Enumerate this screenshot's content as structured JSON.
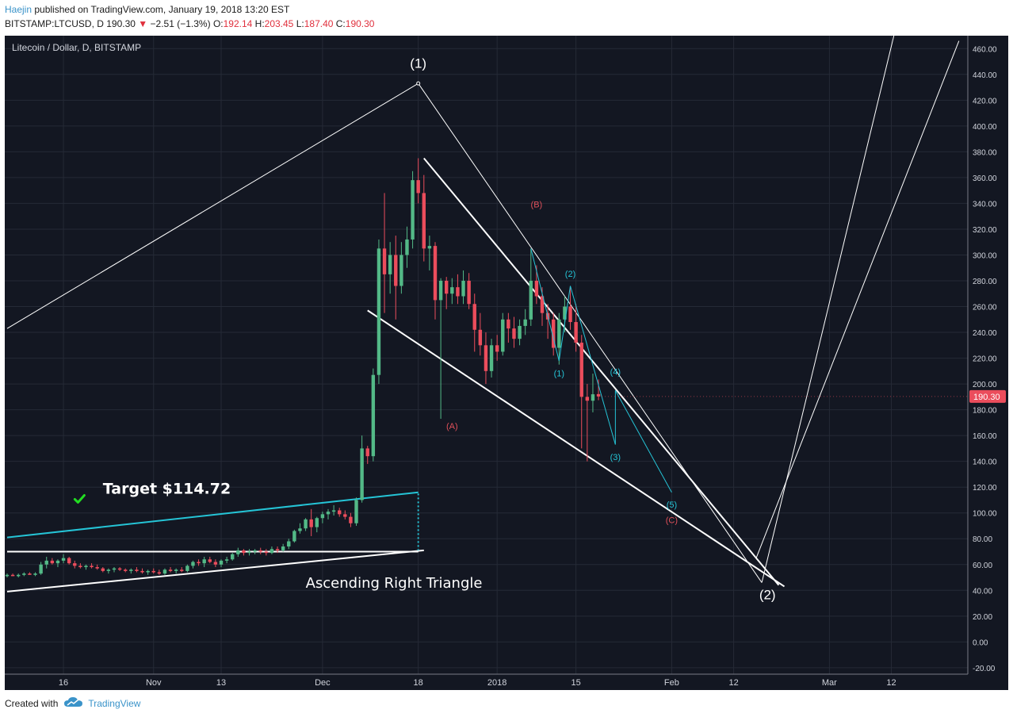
{
  "header": {
    "author": "Haejin",
    "published": " published on TradingView.com, January 19, 2018 13:20 EST"
  },
  "quote": {
    "symbol": "BITSTAMP:LTCUSD, D",
    "last": "190.30",
    "change_arrow": "▼",
    "change": "−2.51 (−1.3%)",
    "o_label": "O:",
    "o": "192.14",
    "h_label": "H:",
    "h": "203.45",
    "l_label": "L:",
    "l": "187.40",
    "c_label": "C:",
    "c": "190.30"
  },
  "footer": {
    "created_with": "Created with",
    "brand": "TradingView",
    "logo_icon": "tradingview-cloud-icon"
  },
  "colors": {
    "background": "#131722",
    "grid": "#252a36",
    "up": "#53b987",
    "down": "#eb4d5c",
    "wave_cyan": "#25c4d6",
    "wave_red": "#e0505a",
    "lines": "#ffffff",
    "check": "#22dd22"
  },
  "chart_data": {
    "type": "candlestick",
    "title": "Litecoin / Dollar, D, BITSTAMP",
    "ylim": [
      -25,
      470
    ],
    "yticks": [
      -20,
      0,
      20,
      40,
      60,
      80,
      100,
      120,
      140,
      160,
      180,
      200,
      220,
      240,
      260,
      280,
      300,
      320,
      340,
      360,
      380,
      400,
      420,
      440,
      460
    ],
    "ytick_labels": [
      "-20.00",
      "0.00",
      "20.00",
      "40.00",
      "60.00",
      "80.00",
      "100.00",
      "120.00",
      "140.00",
      "160.00",
      "180.00",
      "200.00",
      "220.00",
      "240.00",
      "260.00",
      "280.00",
      "300.00",
      "320.00",
      "340.00",
      "360.00",
      "380.00",
      "400.00",
      "420.00",
      "440.00",
      "460.00"
    ],
    "xaxis_start": "2017-10-06",
    "xaxis_end": "2018-03-26",
    "xticks": [
      {
        "date": "2017-10-16",
        "label": "16"
      },
      {
        "date": "2017-11-01",
        "label": "Nov"
      },
      {
        "date": "2017-11-13",
        "label": "13"
      },
      {
        "date": "2017-12-01",
        "label": "Dec"
      },
      {
        "date": "2017-12-18",
        "label": "18"
      },
      {
        "date": "2018-01-01",
        "label": "2018"
      },
      {
        "date": "2018-01-15",
        "label": "15"
      },
      {
        "date": "2018-02-01",
        "label": "Feb"
      },
      {
        "date": "2018-02-12",
        "label": "12"
      },
      {
        "date": "2018-03-01",
        "label": "Mar"
      },
      {
        "date": "2018-03-12",
        "label": "12"
      }
    ],
    "last_price": 190.3,
    "last_price_label": "190.30",
    "candles": [
      {
        "d": "2017-10-06",
        "o": 51,
        "h": 53,
        "l": 50,
        "c": 52
      },
      {
        "d": "2017-10-07",
        "o": 52,
        "h": 53,
        "l": 51,
        "c": 51
      },
      {
        "d": "2017-10-08",
        "o": 51,
        "h": 53,
        "l": 50,
        "c": 52
      },
      {
        "d": "2017-10-09",
        "o": 52,
        "h": 54,
        "l": 51,
        "c": 53
      },
      {
        "d": "2017-10-10",
        "o": 53,
        "h": 54,
        "l": 52,
        "c": 52
      },
      {
        "d": "2017-10-11",
        "o": 52,
        "h": 54,
        "l": 51,
        "c": 53
      },
      {
        "d": "2017-10-12",
        "o": 53,
        "h": 62,
        "l": 52,
        "c": 60
      },
      {
        "d": "2017-10-13",
        "o": 60,
        "h": 66,
        "l": 57,
        "c": 63
      },
      {
        "d": "2017-10-14",
        "o": 63,
        "h": 65,
        "l": 60,
        "c": 61
      },
      {
        "d": "2017-10-15",
        "o": 61,
        "h": 64,
        "l": 58,
        "c": 63
      },
      {
        "d": "2017-10-16",
        "o": 63,
        "h": 68,
        "l": 61,
        "c": 65
      },
      {
        "d": "2017-10-17",
        "o": 65,
        "h": 66,
        "l": 60,
        "c": 61
      },
      {
        "d": "2017-10-18",
        "o": 61,
        "h": 63,
        "l": 57,
        "c": 59
      },
      {
        "d": "2017-10-19",
        "o": 59,
        "h": 61,
        "l": 57,
        "c": 58
      },
      {
        "d": "2017-10-20",
        "o": 58,
        "h": 60,
        "l": 56,
        "c": 59
      },
      {
        "d": "2017-10-21",
        "o": 59,
        "h": 61,
        "l": 57,
        "c": 58
      },
      {
        "d": "2017-10-22",
        "o": 58,
        "h": 60,
        "l": 56,
        "c": 57
      },
      {
        "d": "2017-10-23",
        "o": 57,
        "h": 58,
        "l": 54,
        "c": 55
      },
      {
        "d": "2017-10-24",
        "o": 55,
        "h": 57,
        "l": 53,
        "c": 56
      },
      {
        "d": "2017-10-25",
        "o": 56,
        "h": 58,
        "l": 54,
        "c": 57
      },
      {
        "d": "2017-10-26",
        "o": 57,
        "h": 58,
        "l": 55,
        "c": 56
      },
      {
        "d": "2017-10-27",
        "o": 56,
        "h": 57,
        "l": 54,
        "c": 55
      },
      {
        "d": "2017-10-28",
        "o": 55,
        "h": 57,
        "l": 53,
        "c": 56
      },
      {
        "d": "2017-10-29",
        "o": 56,
        "h": 58,
        "l": 54,
        "c": 55
      },
      {
        "d": "2017-10-30",
        "o": 55,
        "h": 57,
        "l": 53,
        "c": 54
      },
      {
        "d": "2017-10-31",
        "o": 54,
        "h": 56,
        "l": 52,
        "c": 55
      },
      {
        "d": "2017-11-01",
        "o": 55,
        "h": 57,
        "l": 53,
        "c": 54
      },
      {
        "d": "2017-11-02",
        "o": 54,
        "h": 56,
        "l": 52,
        "c": 53
      },
      {
        "d": "2017-11-03",
        "o": 53,
        "h": 57,
        "l": 52,
        "c": 56
      },
      {
        "d": "2017-11-04",
        "o": 56,
        "h": 58,
        "l": 54,
        "c": 55
      },
      {
        "d": "2017-11-05",
        "o": 55,
        "h": 57,
        "l": 53,
        "c": 56
      },
      {
        "d": "2017-11-06",
        "o": 56,
        "h": 58,
        "l": 54,
        "c": 55
      },
      {
        "d": "2017-11-07",
        "o": 55,
        "h": 60,
        "l": 54,
        "c": 59
      },
      {
        "d": "2017-11-08",
        "o": 59,
        "h": 63,
        "l": 57,
        "c": 62
      },
      {
        "d": "2017-11-09",
        "o": 62,
        "h": 64,
        "l": 59,
        "c": 61
      },
      {
        "d": "2017-11-10",
        "o": 61,
        "h": 66,
        "l": 58,
        "c": 64
      },
      {
        "d": "2017-11-11",
        "o": 64,
        "h": 66,
        "l": 61,
        "c": 62
      },
      {
        "d": "2017-11-12",
        "o": 62,
        "h": 64,
        "l": 58,
        "c": 60
      },
      {
        "d": "2017-11-13",
        "o": 60,
        "h": 64,
        "l": 58,
        "c": 63
      },
      {
        "d": "2017-11-14",
        "o": 63,
        "h": 66,
        "l": 61,
        "c": 64
      },
      {
        "d": "2017-11-15",
        "o": 64,
        "h": 69,
        "l": 63,
        "c": 68
      },
      {
        "d": "2017-11-16",
        "o": 68,
        "h": 73,
        "l": 66,
        "c": 71
      },
      {
        "d": "2017-11-17",
        "o": 71,
        "h": 72,
        "l": 67,
        "c": 69
      },
      {
        "d": "2017-11-18",
        "o": 69,
        "h": 72,
        "l": 67,
        "c": 70
      },
      {
        "d": "2017-11-19",
        "o": 70,
        "h": 72,
        "l": 68,
        "c": 71
      },
      {
        "d": "2017-11-20",
        "o": 71,
        "h": 73,
        "l": 68,
        "c": 70
      },
      {
        "d": "2017-11-21",
        "o": 70,
        "h": 72,
        "l": 67,
        "c": 69
      },
      {
        "d": "2017-11-22",
        "o": 69,
        "h": 74,
        "l": 68,
        "c": 72
      },
      {
        "d": "2017-11-23",
        "o": 72,
        "h": 74,
        "l": 69,
        "c": 71
      },
      {
        "d": "2017-11-24",
        "o": 71,
        "h": 76,
        "l": 70,
        "c": 74
      },
      {
        "d": "2017-11-25",
        "o": 74,
        "h": 80,
        "l": 72,
        "c": 78
      },
      {
        "d": "2017-11-26",
        "o": 78,
        "h": 87,
        "l": 77,
        "c": 86
      },
      {
        "d": "2017-11-27",
        "o": 86,
        "h": 92,
        "l": 84,
        "c": 88
      },
      {
        "d": "2017-11-28",
        "o": 88,
        "h": 96,
        "l": 86,
        "c": 95
      },
      {
        "d": "2017-11-29",
        "o": 95,
        "h": 103,
        "l": 82,
        "c": 89
      },
      {
        "d": "2017-11-30",
        "o": 89,
        "h": 97,
        "l": 85,
        "c": 96
      },
      {
        "d": "2017-12-01",
        "o": 96,
        "h": 101,
        "l": 92,
        "c": 99
      },
      {
        "d": "2017-12-02",
        "o": 99,
        "h": 103,
        "l": 95,
        "c": 101
      },
      {
        "d": "2017-12-03",
        "o": 101,
        "h": 106,
        "l": 98,
        "c": 102
      },
      {
        "d": "2017-12-04",
        "o": 102,
        "h": 104,
        "l": 97,
        "c": 99
      },
      {
        "d": "2017-12-05",
        "o": 99,
        "h": 102,
        "l": 95,
        "c": 97
      },
      {
        "d": "2017-12-06",
        "o": 97,
        "h": 100,
        "l": 89,
        "c": 92
      },
      {
        "d": "2017-12-07",
        "o": 92,
        "h": 112,
        "l": 90,
        "c": 110
      },
      {
        "d": "2017-12-08",
        "o": 110,
        "h": 160,
        "l": 108,
        "c": 150
      },
      {
        "d": "2017-12-09",
        "o": 150,
        "h": 152,
        "l": 138,
        "c": 144
      },
      {
        "d": "2017-12-10",
        "o": 144,
        "h": 212,
        "l": 140,
        "c": 207
      },
      {
        "d": "2017-12-11",
        "o": 207,
        "h": 312,
        "l": 200,
        "c": 305
      },
      {
        "d": "2017-12-12",
        "o": 305,
        "h": 348,
        "l": 255,
        "c": 285
      },
      {
        "d": "2017-12-13",
        "o": 285,
        "h": 310,
        "l": 270,
        "c": 300
      },
      {
        "d": "2017-12-14",
        "o": 300,
        "h": 315,
        "l": 250,
        "c": 276
      },
      {
        "d": "2017-12-15",
        "o": 276,
        "h": 310,
        "l": 270,
        "c": 300
      },
      {
        "d": "2017-12-16",
        "o": 300,
        "h": 322,
        "l": 290,
        "c": 312
      },
      {
        "d": "2017-12-17",
        "o": 312,
        "h": 365,
        "l": 305,
        "c": 358
      },
      {
        "d": "2017-12-18",
        "o": 358,
        "h": 375,
        "l": 340,
        "c": 348
      },
      {
        "d": "2017-12-19",
        "o": 348,
        "h": 362,
        "l": 295,
        "c": 305
      },
      {
        "d": "2017-12-20",
        "o": 305,
        "h": 315,
        "l": 288,
        "c": 307
      },
      {
        "d": "2017-12-21",
        "o": 307,
        "h": 310,
        "l": 250,
        "c": 265
      },
      {
        "d": "2017-12-22",
        "o": 265,
        "h": 282,
        "l": 173,
        "c": 280
      },
      {
        "d": "2017-12-23",
        "o": 280,
        "h": 283,
        "l": 258,
        "c": 270
      },
      {
        "d": "2017-12-24",
        "o": 270,
        "h": 282,
        "l": 262,
        "c": 275
      },
      {
        "d": "2017-12-25",
        "o": 275,
        "h": 285,
        "l": 262,
        "c": 268
      },
      {
        "d": "2017-12-26",
        "o": 268,
        "h": 288,
        "l": 262,
        "c": 280
      },
      {
        "d": "2017-12-27",
        "o": 280,
        "h": 286,
        "l": 258,
        "c": 262
      },
      {
        "d": "2017-12-28",
        "o": 262,
        "h": 270,
        "l": 225,
        "c": 242
      },
      {
        "d": "2017-12-29",
        "o": 242,
        "h": 255,
        "l": 222,
        "c": 230
      },
      {
        "d": "2017-12-30",
        "o": 230,
        "h": 240,
        "l": 200,
        "c": 210
      },
      {
        "d": "2017-12-31",
        "o": 210,
        "h": 235,
        "l": 205,
        "c": 230
      },
      {
        "d": "2018-01-01",
        "o": 230,
        "h": 238,
        "l": 218,
        "c": 225
      },
      {
        "d": "2018-01-02",
        "o": 225,
        "h": 255,
        "l": 222,
        "c": 250
      },
      {
        "d": "2018-01-03",
        "o": 250,
        "h": 255,
        "l": 232,
        "c": 243
      },
      {
        "d": "2018-01-04",
        "o": 243,
        "h": 252,
        "l": 228,
        "c": 235
      },
      {
        "d": "2018-01-05",
        "o": 235,
        "h": 250,
        "l": 230,
        "c": 245
      },
      {
        "d": "2018-01-06",
        "o": 245,
        "h": 258,
        "l": 238,
        "c": 250
      },
      {
        "d": "2018-01-07",
        "o": 250,
        "h": 305,
        "l": 245,
        "c": 280
      },
      {
        "d": "2018-01-08",
        "o": 280,
        "h": 292,
        "l": 262,
        "c": 268
      },
      {
        "d": "2018-01-09",
        "o": 268,
        "h": 275,
        "l": 245,
        "c": 255
      },
      {
        "d": "2018-01-10",
        "o": 255,
        "h": 262,
        "l": 235,
        "c": 250
      },
      {
        "d": "2018-01-11",
        "o": 250,
        "h": 255,
        "l": 222,
        "c": 228
      },
      {
        "d": "2018-01-12",
        "o": 228,
        "h": 255,
        "l": 215,
        "c": 250
      },
      {
        "d": "2018-01-13",
        "o": 250,
        "h": 268,
        "l": 240,
        "c": 260
      },
      {
        "d": "2018-01-14",
        "o": 260,
        "h": 276,
        "l": 242,
        "c": 248
      },
      {
        "d": "2018-01-15",
        "o": 248,
        "h": 262,
        "l": 225,
        "c": 232
      },
      {
        "d": "2018-01-16",
        "o": 232,
        "h": 238,
        "l": 150,
        "c": 190
      },
      {
        "d": "2018-01-17",
        "o": 190,
        "h": 200,
        "l": 140,
        "c": 187
      },
      {
        "d": "2018-01-18",
        "o": 187,
        "h": 208,
        "l": 178,
        "c": 192
      },
      {
        "d": "2018-01-19",
        "o": 192.14,
        "h": 203.45,
        "l": 187.4,
        "c": 190.3
      }
    ],
    "wave_labels_white": [
      {
        "label": "(1)",
        "date": "2017-12-18",
        "price": 445
      },
      {
        "label": "(2)",
        "date": "2018-02-18",
        "price": 33
      }
    ],
    "wave_labels_red": [
      {
        "label": "(A)",
        "date": "2017-12-24",
        "price": 165
      },
      {
        "label": "(B)",
        "date": "2018-01-08",
        "price": 337
      },
      {
        "label": "(C)",
        "date": "2018-02-01",
        "price": 92
      }
    ],
    "wave_labels_cyan": [
      {
        "label": "(1)",
        "date": "2018-01-12",
        "price": 206
      },
      {
        "label": "(2)",
        "date": "2018-01-14",
        "price": 283
      },
      {
        "label": "(3)",
        "date": "2018-01-22",
        "price": 141
      },
      {
        "label": "(4)",
        "date": "2018-01-22",
        "price": 207
      },
      {
        "label": "(5)",
        "date": "2018-02-01",
        "price": 104
      }
    ],
    "annotations": {
      "target_text": "Target $114.72",
      "pattern_text": "Ascending Right Triangle"
    }
  }
}
